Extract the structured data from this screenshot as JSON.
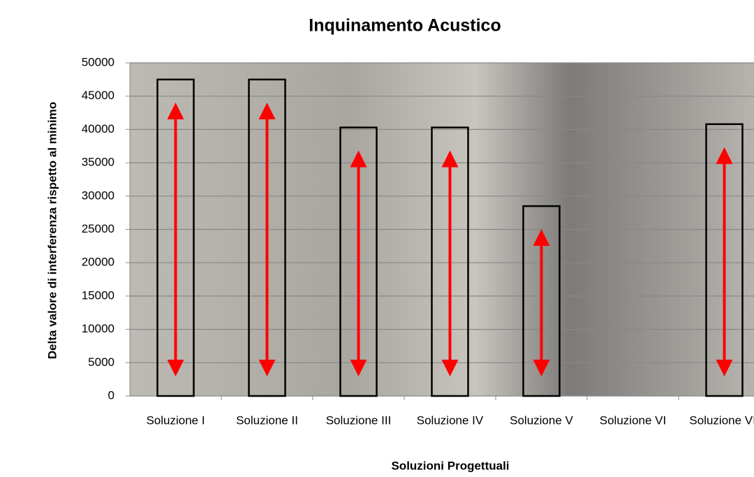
{
  "chart_data": {
    "type": "bar",
    "title": "Inquinamento Acustico",
    "x_label": "Soluzioni Progettuali",
    "y_label": "Delta valore di interferenza rispetto al minimo",
    "categories": [
      "Soluzione I",
      "Soluzione II",
      "Soluzione III",
      "Soluzione IV",
      "Soluzione V",
      "Soluzione VI",
      "Soluzione VII"
    ],
    "values": [
      47500,
      47500,
      40300,
      40300,
      28500,
      null,
      40800
    ],
    "color": "#000000",
    "ylim": [
      0,
      50000
    ],
    "yticks": [
      0,
      5000,
      10000,
      15000,
      20000,
      25000,
      30000,
      35000,
      40000,
      45000,
      50000
    ],
    "grid": true
  }
}
